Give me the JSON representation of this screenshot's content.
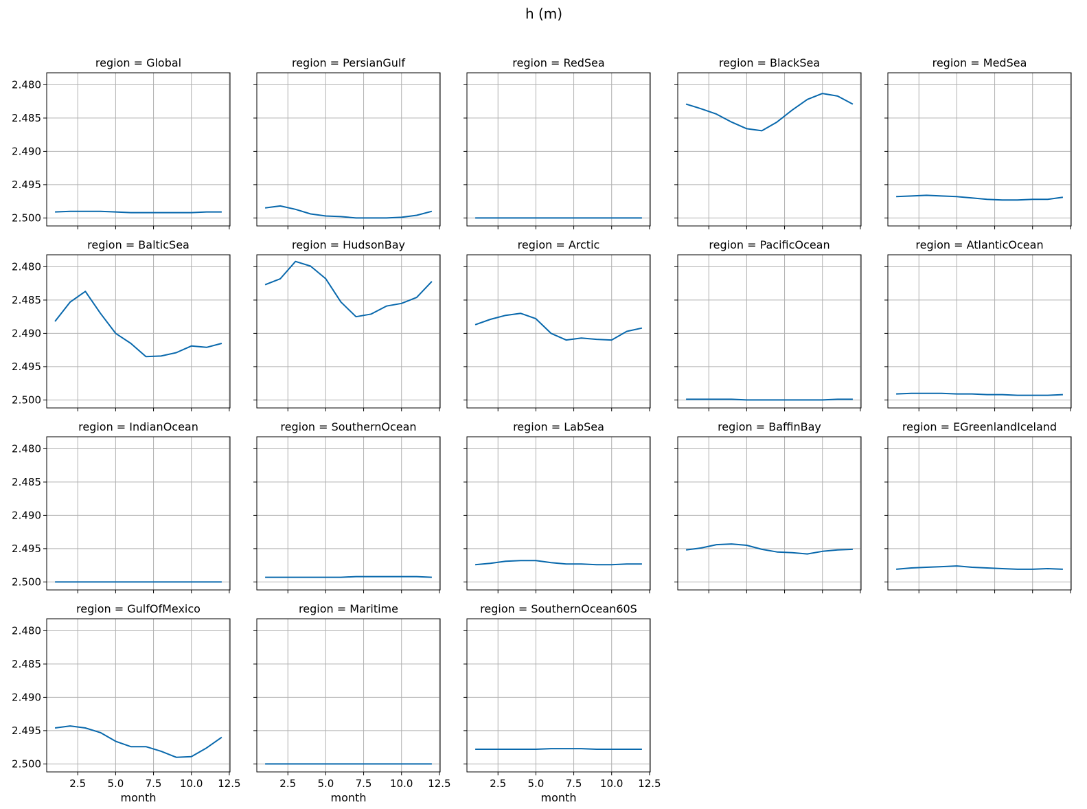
{
  "figure": {
    "title": "h (m)",
    "xlabel": "month",
    "line_color": "#0868ac",
    "grid": true
  },
  "chart_data": {
    "type": "line",
    "title": "h (m)",
    "xlabel": "month",
    "ylabel": "",
    "x": [
      1,
      2,
      3,
      4,
      5,
      6,
      7,
      8,
      9,
      10,
      11,
      12
    ],
    "xlim": [
      0.45,
      12.55
    ],
    "ylim": [
      2.5012,
      2.4782
    ],
    "y_inverted": true,
    "xticks": [
      2.5,
      5.0,
      7.5,
      10.0,
      12.5
    ],
    "xtick_labels": [
      "2.5",
      "5.0",
      "7.5",
      "10.0",
      "12.5"
    ],
    "yticks": [
      2.48,
      2.485,
      2.49,
      2.495,
      2.5
    ],
    "ytick_labels": [
      "2.480",
      "2.485",
      "2.490",
      "2.495",
      "2.500"
    ],
    "panels": [
      {
        "title": "region = Global",
        "values": [
          2.4991,
          2.499,
          2.499,
          2.499,
          2.4991,
          2.4992,
          2.4992,
          2.4992,
          2.4992,
          2.4992,
          2.4991,
          2.4991
        ]
      },
      {
        "title": "region = PersianGulf",
        "values": [
          2.4985,
          2.4982,
          2.4987,
          2.4994,
          2.4997,
          2.4998,
          2.5,
          2.5,
          2.5,
          2.4999,
          2.4996,
          2.499
        ]
      },
      {
        "title": "region = RedSea",
        "values": [
          2.5,
          2.5,
          2.5,
          2.5,
          2.5,
          2.5,
          2.5,
          2.5,
          2.5,
          2.5,
          2.5,
          2.5
        ]
      },
      {
        "title": "region = BlackSea",
        "values": [
          2.4829,
          2.4836,
          2.4844,
          2.4856,
          2.4866,
          2.4869,
          2.4856,
          2.4838,
          2.4822,
          2.4813,
          2.4817,
          2.4829
        ]
      },
      {
        "title": "region = MedSea",
        "values": [
          2.4968,
          2.4967,
          2.4966,
          2.4967,
          2.4968,
          2.497,
          2.4972,
          2.4973,
          2.4973,
          2.4972,
          2.4972,
          2.4969
        ]
      },
      {
        "title": "region = BalticSea",
        "values": [
          2.4882,
          2.4853,
          2.4837,
          2.487,
          2.49,
          2.4915,
          2.4935,
          2.4934,
          2.4929,
          2.4919,
          2.4921,
          2.4915
        ]
      },
      {
        "title": "region = HudsonBay",
        "values": [
          2.4827,
          2.4818,
          2.4792,
          2.4799,
          2.4818,
          2.4853,
          2.4875,
          2.4871,
          2.4859,
          2.4855,
          2.4846,
          2.4822
        ]
      },
      {
        "title": "region = Arctic",
        "values": [
          2.4887,
          2.4879,
          2.4873,
          2.487,
          2.4878,
          2.49,
          2.491,
          2.4907,
          2.4909,
          2.491,
          2.4897,
          2.4892
        ]
      },
      {
        "title": "region = PacificOcean",
        "values": [
          2.4999,
          2.4999,
          2.4999,
          2.4999,
          2.5,
          2.5,
          2.5,
          2.5,
          2.5,
          2.5,
          2.4999,
          2.4999
        ]
      },
      {
        "title": "region = AtlanticOcean",
        "values": [
          2.4991,
          2.499,
          2.499,
          2.499,
          2.4991,
          2.4991,
          2.4992,
          2.4992,
          2.4993,
          2.4993,
          2.4993,
          2.4992
        ]
      },
      {
        "title": "region = IndianOcean",
        "values": [
          2.5,
          2.5,
          2.5,
          2.5,
          2.5,
          2.5,
          2.5,
          2.5,
          2.5,
          2.5,
          2.5,
          2.5
        ]
      },
      {
        "title": "region = SouthernOcean",
        "values": [
          2.4993,
          2.4993,
          2.4993,
          2.4993,
          2.4993,
          2.4993,
          2.4992,
          2.4992,
          2.4992,
          2.4992,
          2.4992,
          2.4993
        ]
      },
      {
        "title": "region = LabSea",
        "values": [
          2.4974,
          2.4972,
          2.4969,
          2.4968,
          2.4968,
          2.4971,
          2.4973,
          2.4973,
          2.4974,
          2.4974,
          2.4973,
          2.4973
        ]
      },
      {
        "title": "region = BaffinBay",
        "values": [
          2.4952,
          2.4949,
          2.4944,
          2.4943,
          2.4945,
          2.4951,
          2.4955,
          2.4956,
          2.4958,
          2.4954,
          2.4952,
          2.4951
        ]
      },
      {
        "title": "region = EGreenlandIceland",
        "values": [
          2.4981,
          2.4979,
          2.4978,
          2.4977,
          2.4976,
          2.4978,
          2.4979,
          2.498,
          2.4981,
          2.4981,
          2.498,
          2.4981
        ]
      },
      {
        "title": "region = GulfOfMexico",
        "values": [
          2.4946,
          2.4943,
          2.4946,
          2.4953,
          2.4966,
          2.4974,
          2.4974,
          2.4981,
          2.499,
          2.4989,
          2.4976,
          2.496
        ]
      },
      {
        "title": "region = Maritime",
        "values": [
          2.5,
          2.5,
          2.5,
          2.5,
          2.5,
          2.5,
          2.5,
          2.5,
          2.5,
          2.5,
          2.5,
          2.5
        ]
      },
      {
        "title": "region = SouthernOcean60S",
        "values": [
          2.4978,
          2.4978,
          2.4978,
          2.4978,
          2.4978,
          2.4977,
          2.4977,
          2.4977,
          2.4978,
          2.4978,
          2.4978,
          2.4978
        ]
      }
    ]
  }
}
